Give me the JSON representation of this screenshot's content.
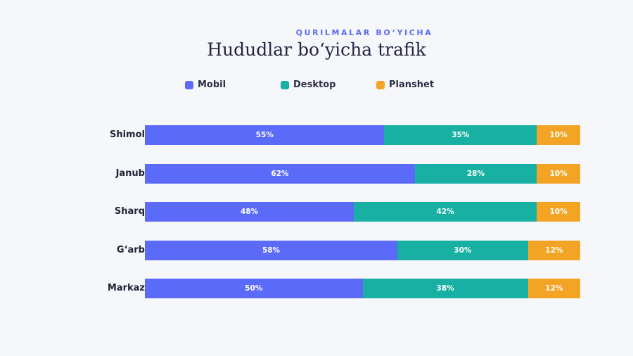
{
  "chart_data": {
    "type": "bar",
    "orientation": "horizontal",
    "stacked": true,
    "subtitle": "QURILMALAR BO‘YICHA",
    "title": "Hududlar bo‘yicha trafik",
    "categories": [
      "Shimol",
      "Janub",
      "Sharq",
      "G‘arb",
      "Markaz"
    ],
    "series": [
      {
        "name": "Mobil",
        "color": "#5b6af8",
        "values": [
          55,
          62,
          48,
          58,
          50
        ],
        "labels": [
          "55%",
          "62%",
          "48%",
          "58%",
          "50%"
        ]
      },
      {
        "name": "Desktop",
        "color": "#17b0a3",
        "values": [
          35,
          28,
          42,
          30,
          38
        ],
        "labels": [
          "35%",
          "28%",
          "42%",
          "30%",
          "38%"
        ]
      },
      {
        "name": "Planshet",
        "color": "#f4a425",
        "values": [
          10,
          10,
          10,
          12,
          12
        ],
        "labels": [
          "10%",
          "10%",
          "10%",
          "12%",
          "12%"
        ]
      }
    ],
    "xlim": [
      0,
      100
    ],
    "legend": "top",
    "grid": false
  }
}
